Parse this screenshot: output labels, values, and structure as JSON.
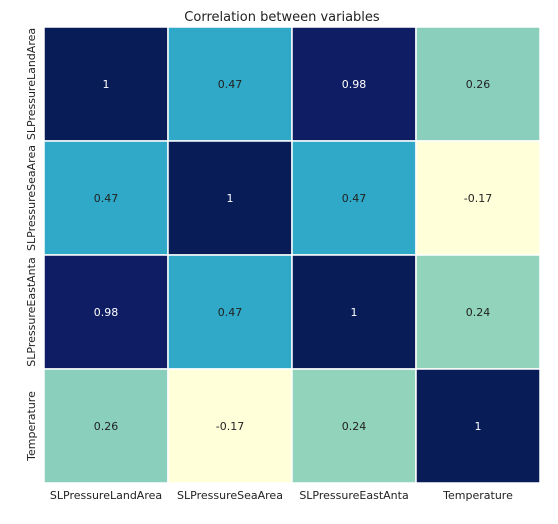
{
  "chart_data": {
    "type": "heatmap",
    "title": "Correlation between variables",
    "xlabel": "",
    "ylabel": "",
    "rows": [
      "SLPressureLandArea",
      "SLPressureSeaArea",
      "SLPressureEastAnta",
      "Temperature"
    ],
    "cols": [
      "SLPressureLandArea",
      "SLPressureSeaArea",
      "SLPressureEastAnta",
      "Temperature"
    ],
    "values": [
      [
        1,
        0.47,
        0.98,
        0.26
      ],
      [
        0.47,
        1,
        0.47,
        -0.17
      ],
      [
        0.98,
        0.47,
        1,
        0.24
      ],
      [
        0.26,
        -0.17,
        0.24,
        1
      ]
    ],
    "value_labels": [
      [
        "1",
        "0.47",
        "0.98",
        "0.26"
      ],
      [
        "0.47",
        "1",
        "0.47",
        "-0.17"
      ],
      [
        "0.98",
        "0.47",
        "1",
        "0.24"
      ],
      [
        "0.26",
        "-0.17",
        "0.24",
        "1"
      ]
    ],
    "colormap": "YlGnBu",
    "colorbar": false,
    "cell_border_color": "#ffffff"
  }
}
